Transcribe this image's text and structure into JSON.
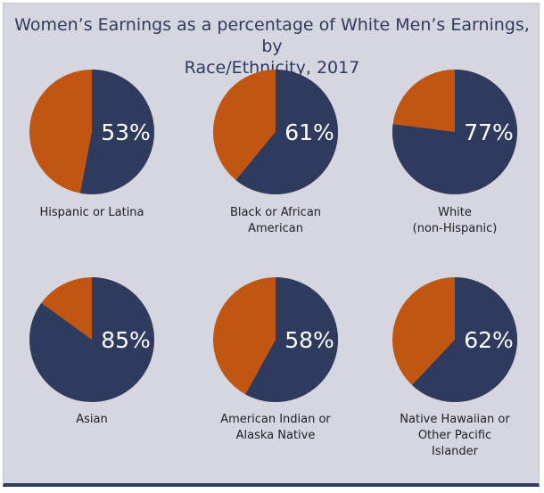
{
  "chart_data": {
    "type": "pie",
    "title_lines": [
      "Women’s Earnings as a percentage of White Men’s Earnings, by",
      "Race/Ethnicity, 2017"
    ],
    "colors": {
      "earnings": "#2f3b5e",
      "gap": "#c05611"
    },
    "pies": [
      {
        "label_lines": [
          "Hispanic or Latina"
        ],
        "value": 53,
        "pct_label": "53%"
      },
      {
        "label_lines": [
          "Black or African",
          "American"
        ],
        "value": 61,
        "pct_label": "61%"
      },
      {
        "label_lines": [
          "White",
          "(non-Hispanic)"
        ],
        "value": 77,
        "pct_label": "77%"
      },
      {
        "label_lines": [
          "Asian"
        ],
        "value": 85,
        "pct_label": "85%"
      },
      {
        "label_lines": [
          "American Indian or",
          "Alaska Native"
        ],
        "value": 58,
        "pct_label": "58%"
      },
      {
        "label_lines": [
          "Native Hawaiian or",
          "Other Pacific",
          "Islander"
        ],
        "value": 62,
        "pct_label": "62%"
      }
    ]
  }
}
